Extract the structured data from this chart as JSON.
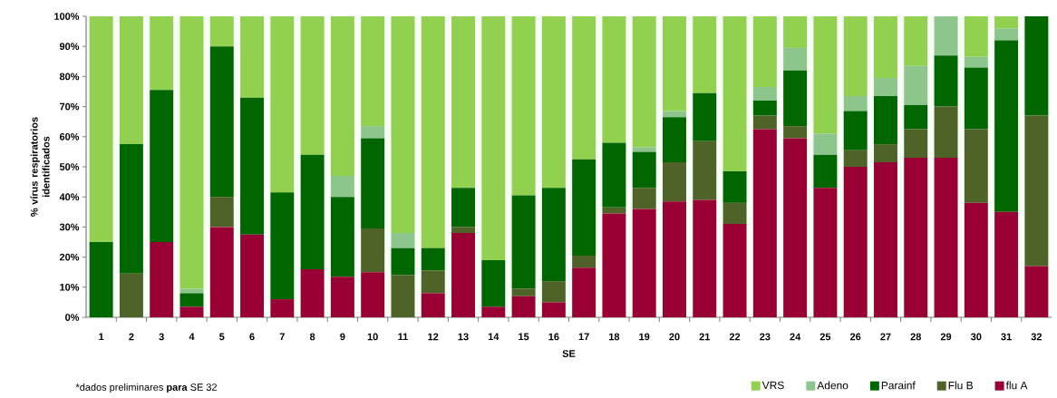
{
  "chart_data": {
    "type": "bar",
    "stacked": true,
    "xlabel": "SE",
    "ylabel": "% vírus respiratorios identificados",
    "categories": [
      "1",
      "2",
      "3",
      "4",
      "5",
      "6",
      "7",
      "8",
      "9",
      "10",
      "11",
      "12",
      "13",
      "14",
      "15",
      "16",
      "17",
      "18",
      "19",
      "20",
      "21",
      "22",
      "23",
      "24",
      "25",
      "26",
      "27",
      "28",
      "29",
      "30",
      "31",
      "32"
    ],
    "series": [
      {
        "name": "flu A",
        "color": "#990033",
        "values": [
          0,
          0,
          25,
          3.5,
          30,
          27.5,
          6,
          16,
          13.5,
          15,
          0,
          8,
          28,
          3.5,
          7,
          5,
          16.5,
          34.5,
          36,
          38.5,
          39,
          31,
          62.5,
          59.5,
          43,
          50,
          51.5,
          53,
          53,
          38,
          35,
          17
        ]
      },
      {
        "name": "Flu B",
        "color": "#4f6228",
        "values": [
          0,
          14.5,
          0,
          0,
          10,
          0,
          0,
          0,
          0,
          14.5,
          14,
          7.5,
          2,
          0,
          2.5,
          7,
          4,
          2,
          7,
          13,
          19.5,
          7,
          4.5,
          4,
          0,
          5.5,
          6,
          9.5,
          17,
          24.5,
          0,
          50
        ]
      },
      {
        "name": "Parainf",
        "color": "#006600",
        "values": [
          25,
          43,
          50.5,
          4.5,
          50,
          45.5,
          35.5,
          38,
          26.5,
          30,
          9,
          7.5,
          13,
          15.5,
          31,
          31,
          32,
          21.5,
          12,
          15,
          16,
          10.5,
          5,
          18.5,
          11,
          13,
          16,
          8,
          17,
          20.5,
          57,
          33
        ]
      },
      {
        "name": "Adeno",
        "color": "#8cc68c",
        "values": [
          0,
          0,
          0,
          1.5,
          0,
          0,
          0,
          0,
          7,
          4,
          5,
          0,
          0,
          0,
          0,
          0,
          0,
          0,
          1.5,
          2,
          0,
          0,
          4.5,
          7.5,
          7,
          5,
          6,
          13,
          13,
          3.5,
          4,
          0
        ]
      },
      {
        "name": "VRS",
        "color": "#92d050",
        "values": [
          75,
          42.5,
          24.5,
          90.5,
          10,
          27,
          58.5,
          46,
          53,
          36.5,
          72,
          77,
          57,
          81,
          59.5,
          57,
          47.5,
          42,
          43.5,
          31.5,
          25.5,
          51.5,
          23.5,
          10.5,
          39,
          26.5,
          20.5,
          16.5,
          0,
          13.5,
          4,
          0
        ]
      }
    ],
    "ylim": [
      0,
      100
    ],
    "yticks": [
      {
        "value": 0,
        "label": "0%"
      },
      {
        "value": 10,
        "label": "10%"
      },
      {
        "value": 20,
        "label": "20%"
      },
      {
        "value": 30,
        "label": "30%"
      },
      {
        "value": 40,
        "label": "40%"
      },
      {
        "value": 50,
        "label": "50%"
      },
      {
        "value": 60,
        "label": "60%"
      },
      {
        "value": 70,
        "label": "70%"
      },
      {
        "value": 80,
        "label": "80%"
      },
      {
        "value": 90,
        "label": "90%"
      },
      {
        "value": 100,
        "label": "100%"
      }
    ],
    "legend": "bottom right",
    "grid": false,
    "annotations": [
      "*dados preliminares **para** SE 32"
    ]
  }
}
